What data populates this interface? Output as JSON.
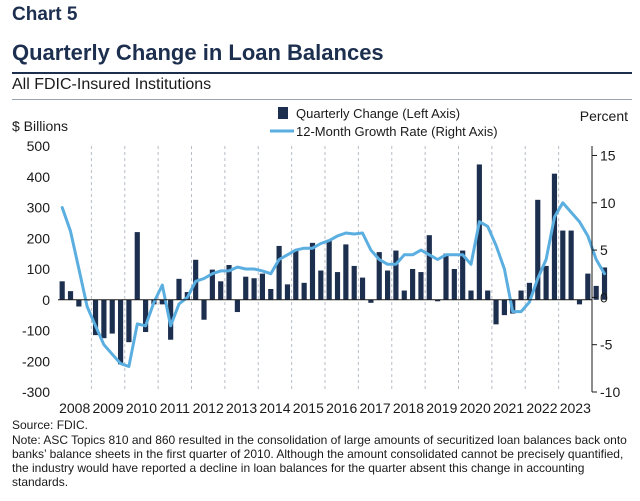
{
  "header": {
    "chart_label": "Chart 5",
    "title": "Quarterly Change in Loan Balances",
    "subtitle": "All FDIC-Insured Institutions"
  },
  "chart_data": {
    "type": "bar",
    "title": "Quarterly Change in Loan Balances",
    "left_axis_label": "$ Billions",
    "right_axis_label": "Percent",
    "left_ylim": [
      -300,
      500
    ],
    "left_ticks": [
      -300,
      -200,
      -100,
      0,
      100,
      200,
      300,
      400,
      500
    ],
    "right_ylim": [
      -10,
      16
    ],
    "right_ticks": [
      -10,
      -5,
      0,
      5,
      10,
      15
    ],
    "x_year_labels": [
      "2008",
      "2009",
      "2010",
      "2011",
      "2012",
      "2013",
      "2014",
      "2015",
      "2016",
      "2017",
      "2018",
      "2019",
      "2020",
      "2021",
      "2022",
      "2023"
    ],
    "grid": "vertical dashed lines at year starts",
    "legend_placement": "top-center",
    "series": [
      {
        "name": "Quarterly Change (Left Axis)",
        "kind": "bar",
        "color": "#1d2f4f",
        "values": [
          60,
          28,
          -22,
          0,
          -115,
          -125,
          -110,
          -210,
          -138,
          220,
          -105,
          -15,
          -15,
          -130,
          68,
          25,
          130,
          -65,
          98,
          60,
          113,
          -40,
          75,
          70,
          85,
          35,
          175,
          50,
          160,
          55,
          185,
          95,
          195,
          90,
          180,
          110,
          72,
          -10,
          155,
          95,
          160,
          30,
          100,
          90,
          210,
          -5,
          150,
          100,
          160,
          30,
          440,
          30,
          -80,
          -50,
          -45,
          30,
          55,
          325,
          110,
          410,
          225,
          225,
          -15,
          85,
          45,
          105
        ]
      },
      {
        "name": "12-Month Growth Rate (Right Axis)",
        "kind": "line",
        "color": "#5aaee0",
        "values": [
          9.5,
          7,
          3,
          -1,
          -3,
          -5,
          -6,
          -7,
          -7.3,
          -2.8,
          -3,
          -0.5,
          1.3,
          -3,
          -0.7,
          0,
          1.7,
          2,
          2.5,
          2.8,
          2.8,
          3.2,
          3,
          3,
          2.8,
          2.5,
          4,
          4.5,
          5,
          5.2,
          5.2,
          5.7,
          6,
          6.5,
          6.8,
          6.7,
          6.8,
          5,
          4,
          3.5,
          3.5,
          4.5,
          4.5,
          5,
          4.5,
          4,
          4.5,
          4.5,
          4.5,
          3.5,
          8,
          7.5,
          5.5,
          3,
          -1.5,
          -1.5,
          -0.5,
          2,
          4,
          8.5,
          10,
          9,
          8,
          6.5,
          4,
          2.5
        ]
      }
    ]
  },
  "source_text": "Source: FDIC.",
  "note_text": "Note: ASC Topics 810 and 860 resulted in the consolidation of large amounts of securitized loan balances back onto banks’ balance sheets in the first quarter of 2010. Although the amount consolidated cannot be precisely quantified, the industry would have reported a decline in loan balances for the quarter absent this change in accounting standards."
}
